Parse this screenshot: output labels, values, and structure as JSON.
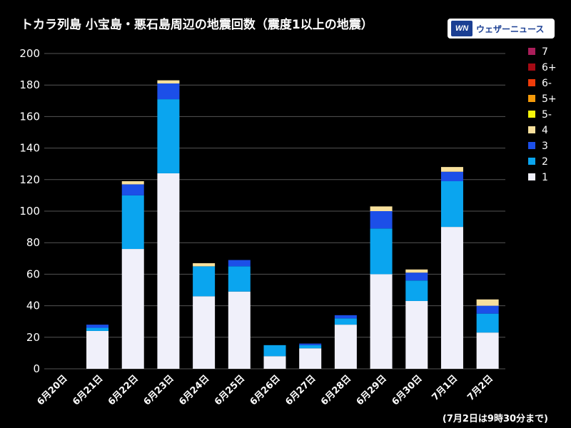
{
  "title": "トカラ列島 小宝島・悪石島周辺の地震回数（震度1以上の地震）",
  "logo": {
    "mark": "WN",
    "text": "ウェザーニュース"
  },
  "footnote": "(7月2日は9時30分まで)",
  "colors": {
    "background": "#000000",
    "grid": "#555555",
    "1": "#f0f0fa",
    "2": "#0aa5ef",
    "3": "#1c4fe8",
    "4": "#f8e09c",
    "5-": "#f5f50a",
    "5+": "#f59a0a",
    "6-": "#f03c0a",
    "6+": "#a50a14",
    "7": "#aa1e5a"
  },
  "chart_data": {
    "type": "bar",
    "stacked": true,
    "title": "トカラ列島 小宝島・悪石島周辺の地震回数（震度1以上の地震）",
    "xlabel": "",
    "ylabel": "",
    "ylim": [
      0,
      200
    ],
    "yticks": [
      0,
      20,
      40,
      60,
      80,
      100,
      120,
      140,
      160,
      180,
      200
    ],
    "grid": true,
    "legend_position": "right",
    "categories": [
      "6月20日",
      "6月21日",
      "6月22日",
      "6月23日",
      "6月24日",
      "6月25日",
      "6月26日",
      "6月27日",
      "6月28日",
      "6月29日",
      "6月30日",
      "7月1日",
      "7月2日"
    ],
    "series": [
      {
        "name": "1",
        "values": [
          0,
          24,
          76,
          124,
          46,
          49,
          8,
          13,
          28,
          60,
          43,
          90,
          23
        ]
      },
      {
        "name": "2",
        "values": [
          0,
          2,
          34,
          47,
          19,
          16,
          7,
          2,
          4,
          29,
          13,
          29,
          12
        ]
      },
      {
        "name": "3",
        "values": [
          0,
          2,
          7,
          10,
          0,
          4,
          0,
          1,
          2,
          11,
          5,
          6,
          5
        ]
      },
      {
        "name": "4",
        "values": [
          0,
          0,
          2,
          2,
          2,
          0,
          0,
          0,
          0,
          3,
          2,
          3,
          4
        ]
      },
      {
        "name": "5-",
        "values": [
          0,
          0,
          0,
          0,
          0,
          0,
          0,
          0,
          0,
          0,
          0,
          0,
          0
        ]
      },
      {
        "name": "5+",
        "values": [
          0,
          0,
          0,
          0,
          0,
          0,
          0,
          0,
          0,
          0,
          0,
          0,
          0
        ]
      },
      {
        "name": "6-",
        "values": [
          0,
          0,
          0,
          0,
          0,
          0,
          0,
          0,
          0,
          0,
          0,
          0,
          0
        ]
      },
      {
        "name": "6+",
        "values": [
          0,
          0,
          0,
          0,
          0,
          0,
          0,
          0,
          0,
          0,
          0,
          0,
          0
        ]
      },
      {
        "name": "7",
        "values": [
          0,
          0,
          0,
          0,
          0,
          0,
          0,
          0,
          0,
          0,
          0,
          0,
          0
        ]
      }
    ],
    "legend_order": [
      "7",
      "6+",
      "6-",
      "5+",
      "5-",
      "4",
      "3",
      "2",
      "1"
    ]
  }
}
